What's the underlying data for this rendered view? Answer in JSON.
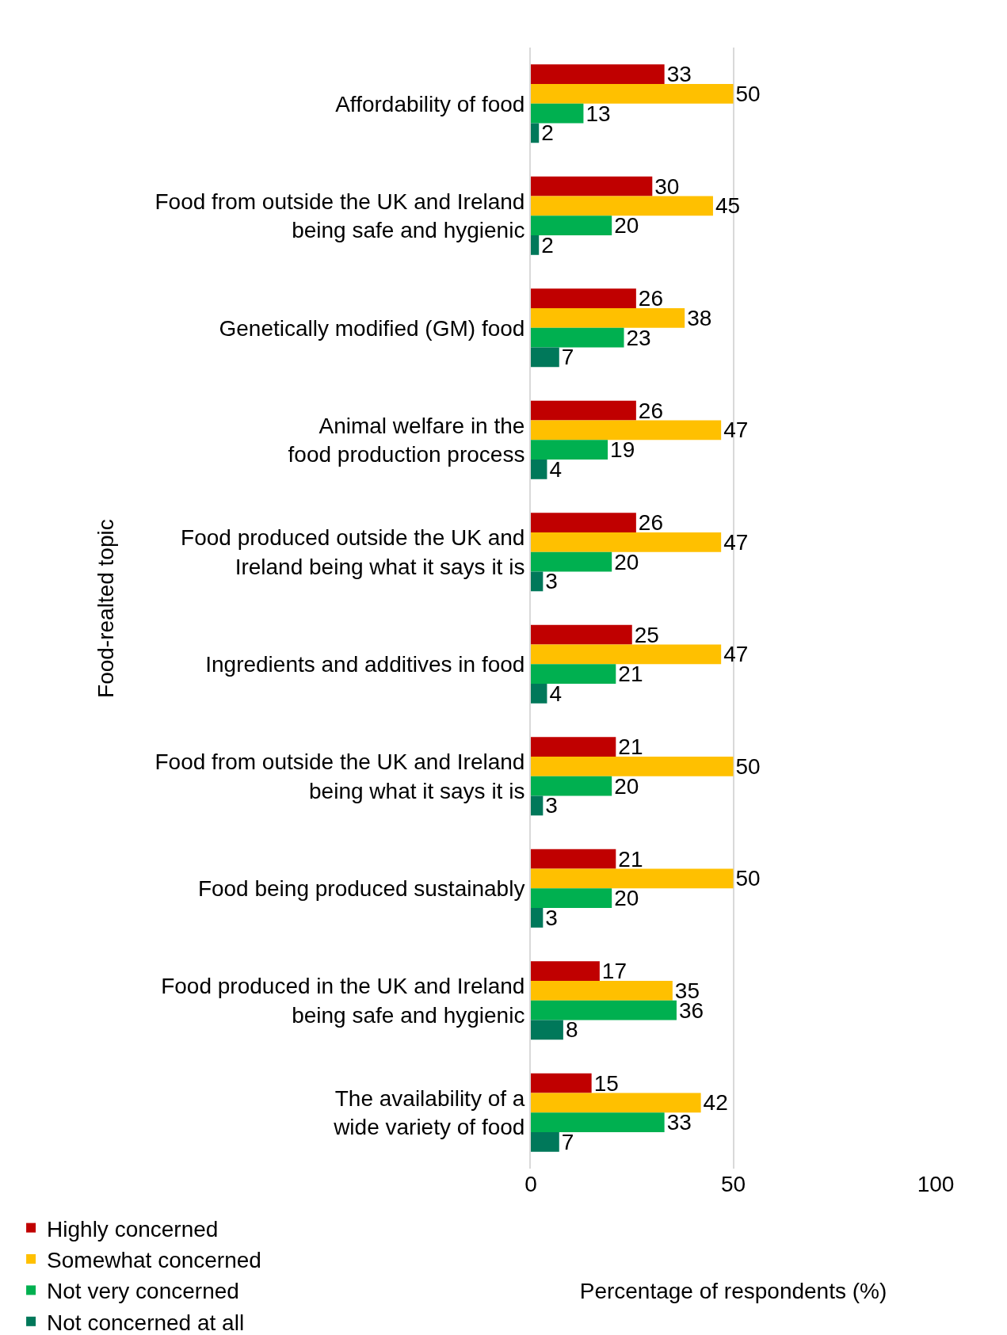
{
  "chart_data": {
    "type": "bar",
    "orientation": "horizontal",
    "xlabel": "Percentage of respondents (%)",
    "ylabel": "Food-realted topic",
    "categories": [
      "Affordability of food",
      "Food from outside the UK and Ireland\nbeing safe and hygienic",
      "Genetically modified (GM) food",
      "Animal welfare in the\nfood production process",
      "Food produced outside the UK and\nIreland being what it says it is",
      "Ingredients and additives in food",
      "Food from outside the UK and Ireland\nbeing what it says it is",
      "Food being produced sustainably",
      "Food produced in the UK and Ireland\nbeing safe and hygienic",
      "The availability of a\nwide variety of food"
    ],
    "series": [
      {
        "name": "Highly concerned",
        "color": "#c00000",
        "values": [
          33,
          30,
          26,
          26,
          26,
          25,
          21,
          21,
          17,
          15
        ]
      },
      {
        "name": "Somewhat concerned",
        "color": "#ffc000",
        "values": [
          50,
          45,
          38,
          47,
          47,
          47,
          50,
          50,
          35,
          42
        ]
      },
      {
        "name": "Not very concerned",
        "color": "#00b050",
        "values": [
          13,
          20,
          23,
          19,
          20,
          21,
          20,
          20,
          36,
          33
        ]
      },
      {
        "name": "Not concerned at all",
        "color": "#00785a",
        "values": [
          2,
          2,
          7,
          4,
          3,
          4,
          3,
          3,
          8,
          7
        ]
      }
    ],
    "xlim": [
      0,
      100
    ],
    "xticks": [
      0,
      50,
      100
    ],
    "grid": "x",
    "legend": "bottom left",
    "data_labels": true
  }
}
